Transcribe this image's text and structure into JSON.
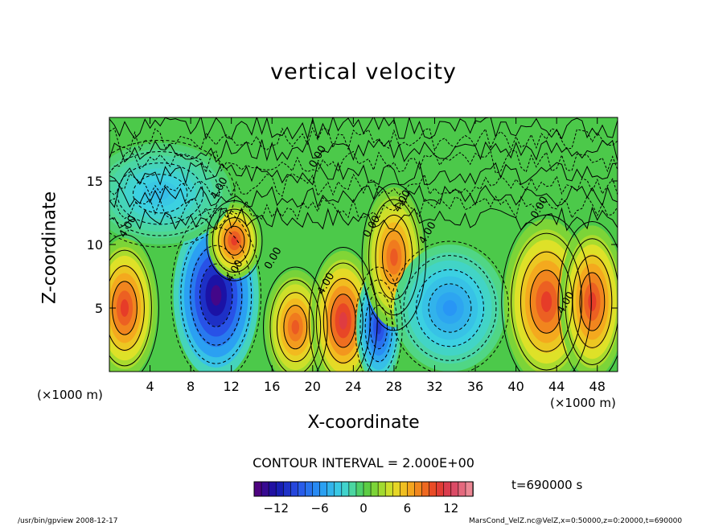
{
  "chart_data": {
    "type": "heatmap",
    "title": "vertical velocity",
    "xlabel": "X-coordinate",
    "ylabel": "Z-coordinate",
    "x_unit_label": "(×1000 m)",
    "x_ticks": [
      "4",
      "8",
      "12",
      "16",
      "20",
      "24",
      "28",
      "32",
      "36",
      "40",
      "44",
      "48"
    ],
    "y_ticks": [
      "5",
      "10",
      "15"
    ],
    "xlim": [
      0,
      50
    ],
    "ylim": [
      0,
      20
    ],
    "contour_interval_label": "CONTOUR INTERVAL = 2.000E+00",
    "time_label": "t=690000 s",
    "colorbar": {
      "range": [
        -15,
        15
      ],
      "ticks": [
        "−12",
        "−6",
        "0",
        "6",
        "12"
      ],
      "tick_values": [
        -12,
        -6,
        0,
        6,
        12
      ]
    },
    "contour_labels": [
      "4.00",
      "4.00",
      "4.00",
      "4.00",
      "0.00",
      "0.00",
      "0.00",
      "4.00",
      "4.00",
      "0.00",
      "4.00"
    ],
    "features": [
      {
        "x": 1.5,
        "z": 5.0,
        "w": 10
      },
      {
        "x": 10.5,
        "z": 6.0,
        "w": -14
      },
      {
        "x": 12.3,
        "z": 10.3,
        "w": 10
      },
      {
        "x": 18.3,
        "z": 3.5,
        "w": 9
      },
      {
        "x": 23.0,
        "z": 4.0,
        "w": 11
      },
      {
        "x": 26.5,
        "z": 3.5,
        "w": -10
      },
      {
        "x": 28.0,
        "z": 9.0,
        "w": 9
      },
      {
        "x": 33.5,
        "z": 5.0,
        "w": -6
      },
      {
        "x": 43.0,
        "z": 5.5,
        "w": 10
      },
      {
        "x": 47.5,
        "z": 5.5,
        "w": 10
      },
      {
        "x": 5.0,
        "z": 14.0,
        "w": -4
      }
    ],
    "footer_left": "/usr/bin/gpview   2008-12-17",
    "footer_right": "MarsCond_VelZ.nc@VelZ,x=0:50000,z=0:20000,t=690000"
  }
}
